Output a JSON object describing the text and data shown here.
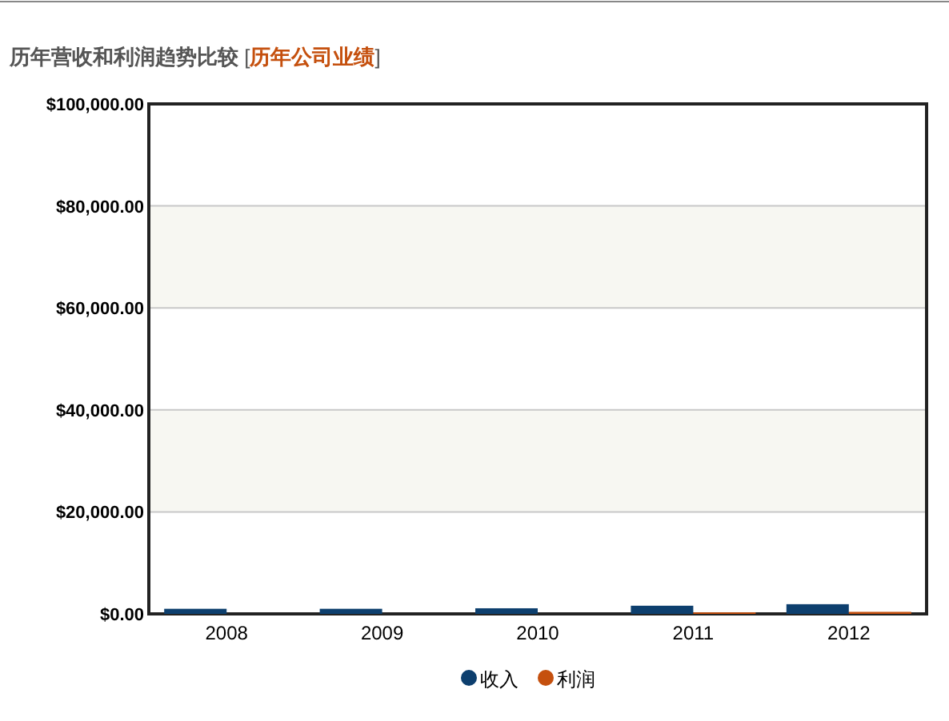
{
  "chart_data": {
    "type": "bar",
    "title": "历年营收和利润趋势比较",
    "subtitle": "[历年公司业绩]",
    "categories": [
      "2008",
      "2009",
      "2010",
      "2011",
      "2012"
    ],
    "series": [
      {
        "name": "收入",
        "color": "#0d3f6e",
        "values": [
          1000,
          1000,
          1100,
          1600,
          1900
        ]
      },
      {
        "name": "利润",
        "color": "#c5500e",
        "values": [
          null,
          null,
          null,
          300,
          400
        ]
      }
    ],
    "ylim": [
      0,
      100000
    ],
    "yticks": [
      {
        "value": 0,
        "label": "$0.00"
      },
      {
        "value": 20000,
        "label": "$20,000.00"
      },
      {
        "value": 40000,
        "label": "$40,000.00"
      },
      {
        "value": 60000,
        "label": "$60,000.00"
      },
      {
        "value": 80000,
        "label": "$80,000.00"
      },
      {
        "value": 100000,
        "label": "$100,000.00"
      }
    ],
    "bands": [
      {
        "axis": "y",
        "from": 20000,
        "to": 40000,
        "color": "#f7f7f2"
      },
      {
        "axis": "y",
        "from": 60000,
        "to": 80000,
        "color": "#f7f7f2"
      }
    ],
    "grid": "y",
    "legend": "bottom"
  }
}
